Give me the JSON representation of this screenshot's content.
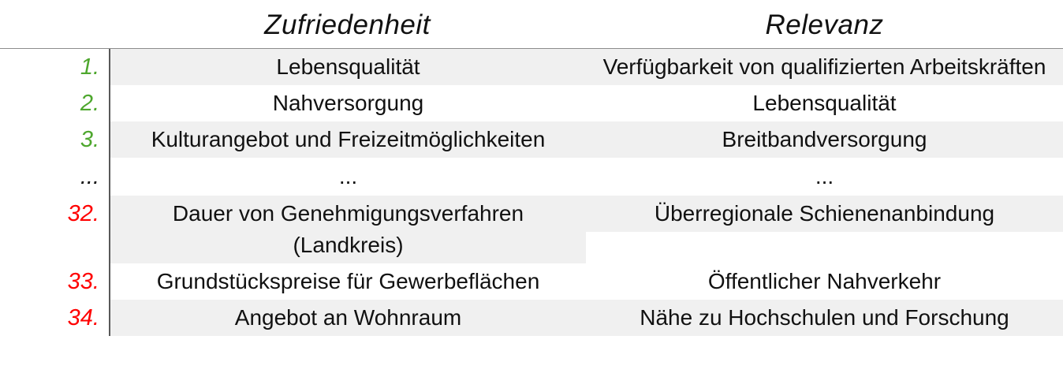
{
  "chart_data": {
    "type": "table",
    "description": "Ranking table comparing satisfaction (Zufriedenheit) and relevance (Relevanz) of location factors; ranks 1-3 shown in green, ranks 32-34 shown in red, middle ranks elided with ellipsis",
    "columns": [
      "Zufriedenheit",
      "Relevanz"
    ],
    "rows": [
      {
        "rank": "1.",
        "rank_color": "#4ea72e",
        "zufriedenheit": "Lebensqualität",
        "relevanz": "Verfügbarkeit von qualifizierten Arbeitskräften"
      },
      {
        "rank": "2.",
        "rank_color": "#4ea72e",
        "zufriedenheit": "Nahversorgung",
        "relevanz": "Lebensqualität"
      },
      {
        "rank": "3.",
        "rank_color": "#4ea72e",
        "zufriedenheit": "Kulturangebot und Freizeitmöglichkeiten",
        "relevanz": "Breitbandversorgung"
      },
      {
        "rank": "...",
        "rank_color": "#111111",
        "zufriedenheit": "...",
        "relevanz": "..."
      },
      {
        "rank": "32.",
        "rank_color": "#ff0000",
        "zufriedenheit": "Dauer von Genehmigungsverfahren (Landkreis)",
        "relevanz": "Überregionale Schienenanbindung"
      },
      {
        "rank": "33.",
        "rank_color": "#ff0000",
        "zufriedenheit": "Grundstückspreise für Gewerbeflächen",
        "relevanz": "Öffentlicher Nahverkehr"
      },
      {
        "rank": "34.",
        "rank_color": "#ff0000",
        "zufriedenheit": "Angebot an Wohnraum",
        "relevanz": "Nähe zu Hochschulen und Forschung"
      }
    ],
    "colors": {
      "top_rank_green": "#4ea72e",
      "bottom_rank_red": "#ff0000",
      "row_shade": "#f0f0f0",
      "divider_gray": "#8c8c8c"
    },
    "layout": {
      "shaded_rows": [
        1,
        3,
        32,
        34
      ],
      "grid": "alternating row shading, vertical rule after rank column, horizontal rule under header"
    }
  }
}
